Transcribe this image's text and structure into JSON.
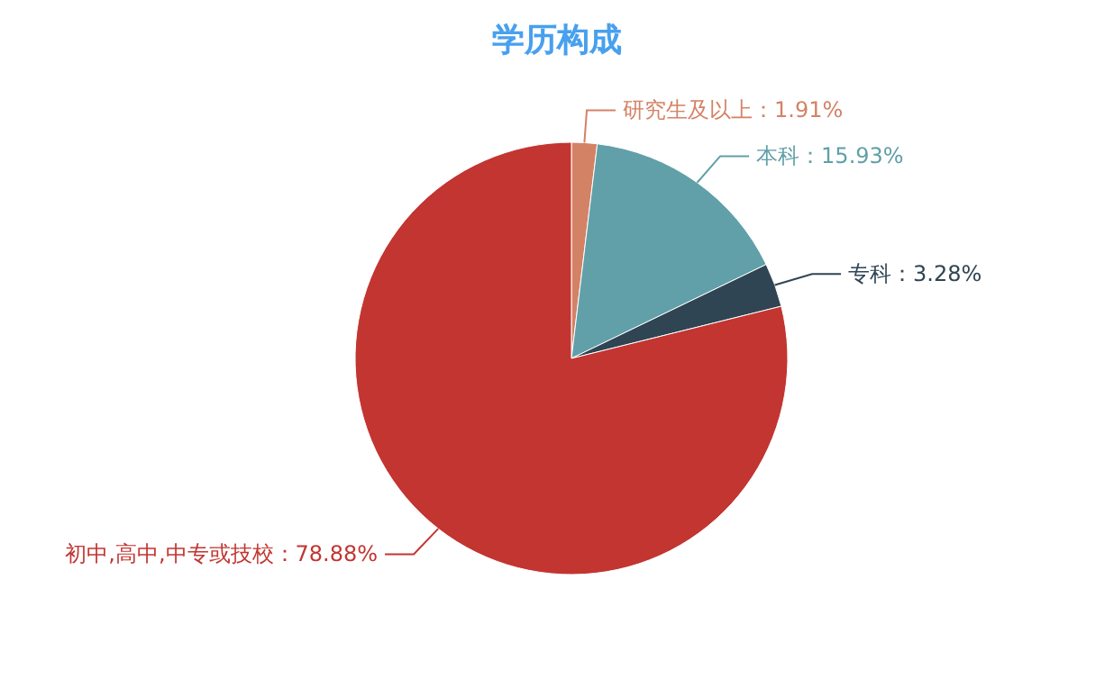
{
  "chart_data": {
    "type": "pie",
    "title": "学历构成",
    "categories": [
      "研究生及以上",
      "本科",
      "专科",
      "初中,高中,中专或技校"
    ],
    "values": [
      1.91,
      15.93,
      3.28,
      78.88
    ],
    "colors": [
      "#d48265",
      "#61a0a8",
      "#2f4554",
      "#c23531"
    ],
    "value_labels": [
      "1.91%",
      "15.93%",
      "3.28%",
      "78.88%"
    ]
  }
}
